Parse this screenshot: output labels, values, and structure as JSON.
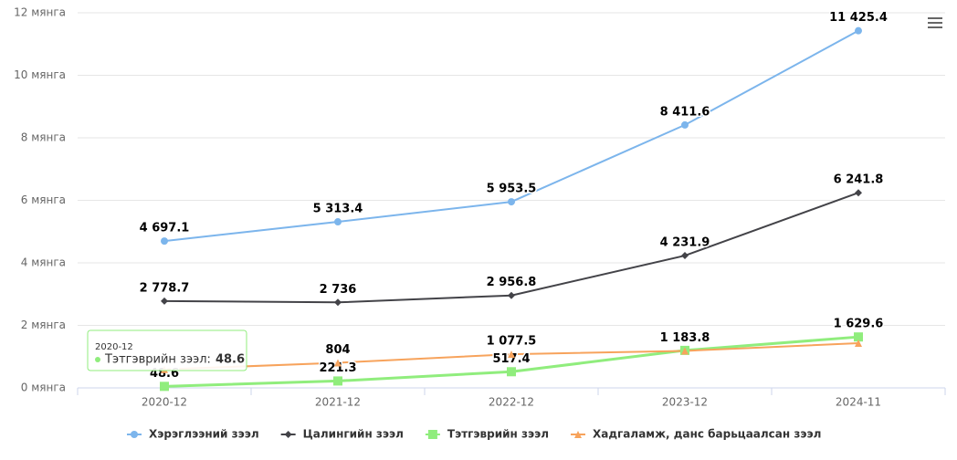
{
  "chart_data": {
    "type": "line",
    "categories": [
      "2020-12",
      "2021-12",
      "2022-12",
      "2023-12",
      "2024-11"
    ],
    "series": [
      {
        "name": "Хэрэглээний зээл",
        "color": "#7cb5ec",
        "marker": "circle",
        "values": [
          4697.1,
          5313.4,
          5953.5,
          8411.6,
          11425.4
        ],
        "value_labels": [
          "4 697.1",
          "5 313.4",
          "5 953.5",
          "8 411.6",
          "11 425.4"
        ]
      },
      {
        "name": "Цалингийн зээл",
        "color": "#434348",
        "marker": "diamond",
        "values": [
          2778.7,
          2736,
          2956.8,
          4231.9,
          6241.8
        ],
        "value_labels": [
          "2 778.7",
          "2 736",
          "2 956.8",
          "4 231.9",
          "6 241.8"
        ]
      },
      {
        "name": "Тэтгэврийн зээл",
        "color": "#90ed7d",
        "marker": "square",
        "values": [
          48.6,
          221.3,
          517.4,
          1200,
          1629.6
        ],
        "value_labels": [
          "48.6",
          "221.3",
          "517.4",
          null,
          "1 629.6"
        ]
      },
      {
        "name": "Хадгаламж, данс барьцаалсан зээл",
        "color": "#f7a35c",
        "marker": "triangle",
        "values": [
          590,
          804,
          1077.5,
          1183.8,
          1430
        ],
        "value_labels": [
          null,
          "804",
          "1 077.5",
          "1 183.8",
          null
        ]
      }
    ],
    "ylim": [
      0,
      12000
    ],
    "yticks": [
      {
        "value": 0,
        "label": "0 мянга"
      },
      {
        "value": 2000,
        "label": "2 мянга"
      },
      {
        "value": 4000,
        "label": "4 мянга"
      },
      {
        "value": 6000,
        "label": "6 мянга"
      },
      {
        "value": 8000,
        "label": "8 мянга"
      },
      {
        "value": 10000,
        "label": "10 мянга"
      },
      {
        "value": 12000,
        "label": "12 мянга"
      }
    ],
    "grid": true,
    "legend": "bottom",
    "tooltip": {
      "label": "Тэтгэврийн зээл:"
    }
  }
}
